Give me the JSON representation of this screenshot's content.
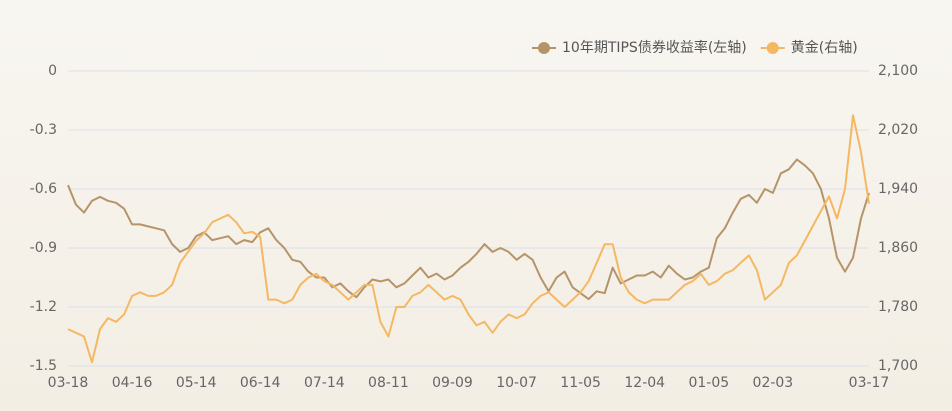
{
  "chart_data": {
    "type": "line",
    "categories": [
      "03-18",
      null,
      null,
      null,
      null,
      null,
      null,
      null,
      "04-16",
      null,
      null,
      null,
      null,
      null,
      null,
      null,
      "05-14",
      null,
      null,
      null,
      null,
      null,
      null,
      null,
      "06-14",
      null,
      null,
      null,
      null,
      null,
      null,
      null,
      "07-14",
      null,
      null,
      null,
      null,
      null,
      null,
      null,
      "08-11",
      null,
      null,
      null,
      null,
      null,
      null,
      null,
      "09-09",
      null,
      null,
      null,
      null,
      null,
      null,
      null,
      "10-07",
      null,
      null,
      null,
      null,
      null,
      null,
      null,
      "11-05",
      null,
      null,
      null,
      null,
      null,
      null,
      null,
      "12-04",
      null,
      null,
      null,
      null,
      null,
      null,
      null,
      "01-05",
      null,
      null,
      null,
      null,
      null,
      null,
      null,
      "02-03",
      null,
      null,
      null,
      null,
      null,
      null,
      null,
      null,
      null,
      null,
      null,
      "03-17"
    ],
    "series": [
      {
        "name": "10年期TIPS债券收益率(左轴)",
        "color": "#b5946a",
        "axis": "y",
        "values": [
          -0.58,
          -0.68,
          -0.72,
          -0.66,
          -0.64,
          -0.66,
          -0.67,
          -0.7,
          -0.78,
          -0.78,
          -0.79,
          -0.8,
          -0.81,
          -0.88,
          -0.92,
          -0.9,
          -0.84,
          -0.82,
          -0.86,
          -0.85,
          -0.84,
          -0.88,
          -0.86,
          -0.87,
          -0.82,
          -0.8,
          -0.86,
          -0.9,
          -0.96,
          -0.97,
          -1.02,
          -1.05,
          -1.05,
          -1.1,
          -1.08,
          -1.12,
          -1.15,
          -1.1,
          -1.06,
          -1.07,
          -1.06,
          -1.1,
          -1.08,
          -1.04,
          -1.0,
          -1.05,
          -1.03,
          -1.06,
          -1.04,
          -1.0,
          -0.97,
          -0.93,
          -0.88,
          -0.92,
          -0.9,
          -0.92,
          -0.96,
          -0.93,
          -0.96,
          -1.05,
          -1.12,
          -1.05,
          -1.02,
          -1.1,
          -1.13,
          -1.16,
          -1.12,
          -1.13,
          -1.0,
          -1.08,
          -1.06,
          -1.04,
          -1.04,
          -1.02,
          -1.05,
          -0.99,
          -1.03,
          -1.06,
          -1.05,
          -1.02,
          -1.0,
          -0.85,
          -0.8,
          -0.72,
          -0.65,
          -0.63,
          -0.67,
          -0.6,
          -0.62,
          -0.52,
          -0.5,
          -0.45,
          -0.48,
          -0.52,
          -0.6,
          -0.75,
          -0.95,
          -1.02,
          -0.95,
          -0.75,
          -0.62
        ]
      },
      {
        "name": "黄金(右轴)",
        "color": "#f5b862",
        "axis": "y2",
        "values": [
          1750,
          1745,
          1740,
          1705,
          1750,
          1765,
          1760,
          1770,
          1795,
          1800,
          1795,
          1795,
          1800,
          1810,
          1840,
          1855,
          1870,
          1880,
          1895,
          1900,
          1905,
          1895,
          1880,
          1882,
          1875,
          1790,
          1790,
          1785,
          1790,
          1810,
          1820,
          1825,
          1815,
          1810,
          1800,
          1790,
          1800,
          1810,
          1810,
          1760,
          1740,
          1780,
          1780,
          1795,
          1800,
          1810,
          1800,
          1790,
          1795,
          1790,
          1770,
          1755,
          1760,
          1745,
          1760,
          1770,
          1765,
          1770,
          1785,
          1795,
          1800,
          1790,
          1780,
          1790,
          1800,
          1815,
          1840,
          1865,
          1865,
          1820,
          1800,
          1790,
          1785,
          1790,
          1790,
          1790,
          1800,
          1810,
          1815,
          1825,
          1810,
          1815,
          1825,
          1830,
          1840,
          1850,
          1830,
          1790,
          1800,
          1810,
          1840,
          1850,
          1870,
          1890,
          1910,
          1930,
          1900,
          1940,
          2040,
          1990,
          1920
        ]
      }
    ],
    "ylim": [
      -1.5,
      0
    ],
    "yticks": [
      0,
      -0.3,
      -0.6,
      -0.9,
      -1.2,
      -1.5
    ],
    "y2lim": [
      1700,
      2100
    ],
    "y2ticks": [
      {
        "value": 1700,
        "label": "1,700"
      },
      {
        "value": 1780,
        "label": "1,780"
      },
      {
        "value": 1860,
        "label": "1,860"
      },
      {
        "value": 1940,
        "label": "1,940"
      },
      {
        "value": 2020,
        "label": "2,020"
      },
      {
        "value": 2100,
        "label": "2,100"
      }
    ],
    "grid": true,
    "legend": "top-right"
  }
}
